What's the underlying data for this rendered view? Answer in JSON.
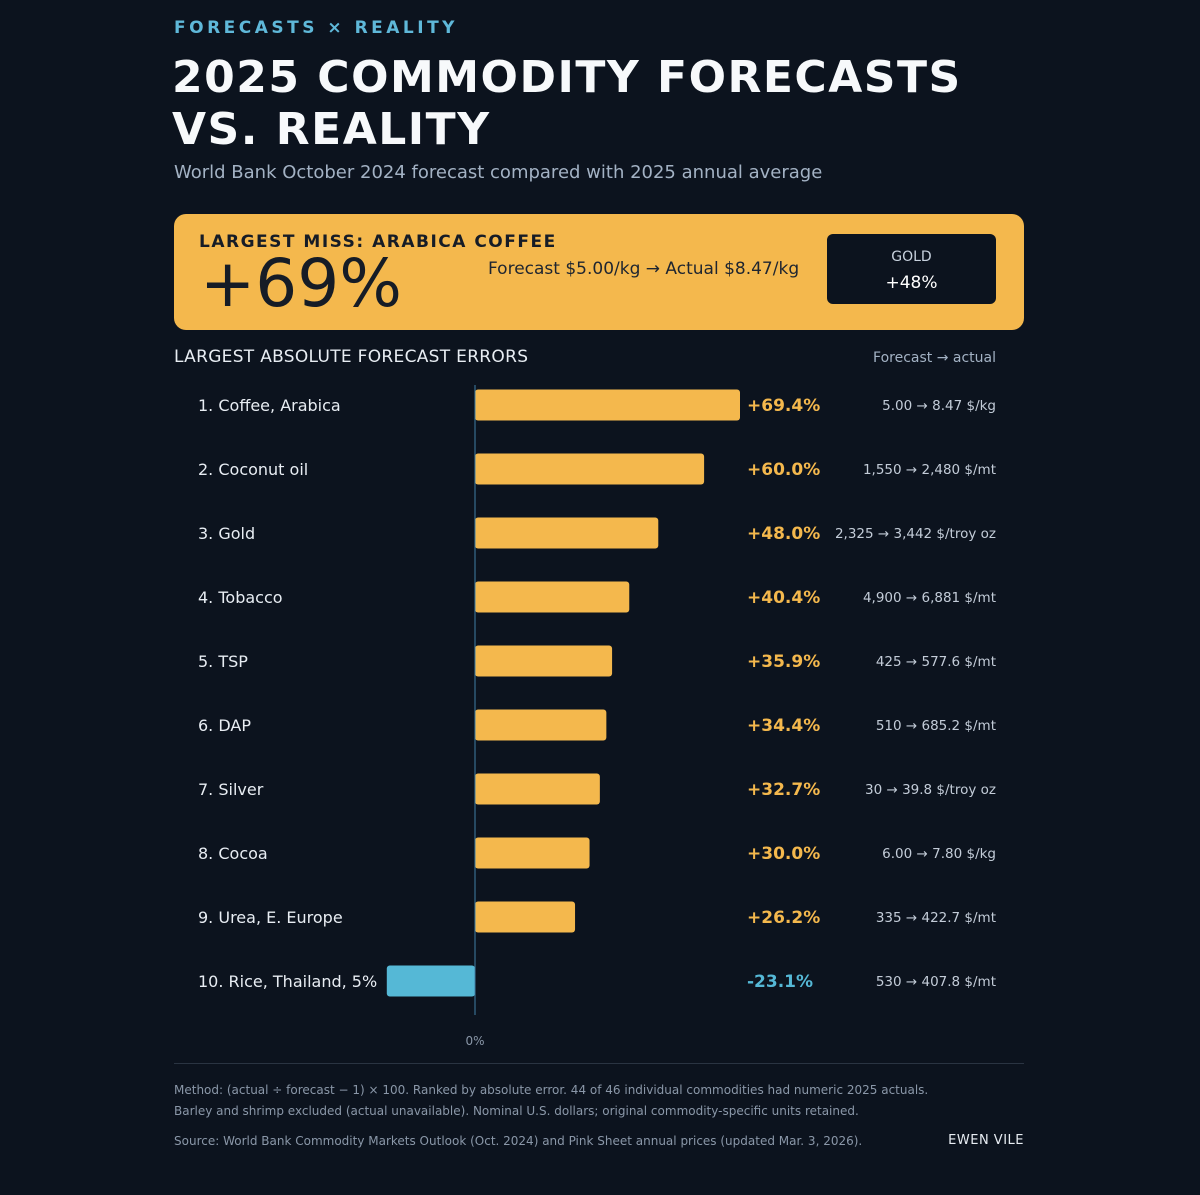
{
  "header": {
    "kicker": "FORECASTS × REALITY",
    "title_line1": "2025 COMMODITY FORECASTS",
    "title_line2": "VS. REALITY",
    "subtitle": "World Bank October 2024 forecast compared with 2025 annual average"
  },
  "banner": {
    "label": "LARGEST MISS: ARABICA COFFEE",
    "big_value": "+69%",
    "detail": "Forecast $5.00/kg → Actual $8.47/kg",
    "side_label": "GOLD",
    "side_value": "+48%"
  },
  "section": {
    "heading": "LARGEST ABSOLUTE FORECAST ERRORS",
    "column_header": "Forecast → actual"
  },
  "colors": {
    "positive": "#f4b84d",
    "negative": "#55b8d6",
    "background": "#0c131e",
    "accent": "#5fb8d9"
  },
  "chart_data": {
    "type": "bar",
    "orientation": "horizontal",
    "categories": [
      "1. Coffee, Arabica",
      "2. Coconut oil",
      "3. Gold",
      "4. Tobacco",
      "5. TSP",
      "6. DAP",
      "7. Silver",
      "8. Cocoa",
      "9. Urea, E. Europe",
      "10. Rice, Thailand, 5%"
    ],
    "values": [
      69.4,
      60.0,
      48.0,
      40.4,
      35.9,
      34.4,
      32.7,
      30.0,
      26.2,
      -23.1
    ],
    "value_labels": [
      "+69.4%",
      "+60.0%",
      "+48.0%",
      "+40.4%",
      "+35.9%",
      "+34.4%",
      "+32.7%",
      "+30.0%",
      "+26.2%",
      "-23.1%"
    ],
    "detail_labels": [
      "5.00 → 8.47 $/kg",
      "1,550 → 2,480 $/mt",
      "2,325 → 3,442 $/troy oz",
      "4,900 → 6,881 $/mt",
      "425 → 577.6 $/mt",
      "510 → 685.2 $/mt",
      "30 → 39.8 $/troy oz",
      "6.00 → 7.80 $/kg",
      "335 → 422.7 $/mt",
      "530 → 407.8 $/mt"
    ],
    "zero_label": "0%"
  },
  "footer": {
    "method_line1": "Method: (actual ÷ forecast − 1) × 100. Ranked by absolute error. 44 of 46 individual commodities had numeric 2025 actuals.",
    "method_line2": "Barley and shrimp excluded (actual unavailable). Nominal U.S. dollars; original commodity-specific units retained.",
    "source": "Source: World Bank Commodity Markets Outlook (Oct. 2024) and Pink Sheet annual prices (updated Mar. 3, 2026).",
    "author": "EWEN VILE"
  }
}
